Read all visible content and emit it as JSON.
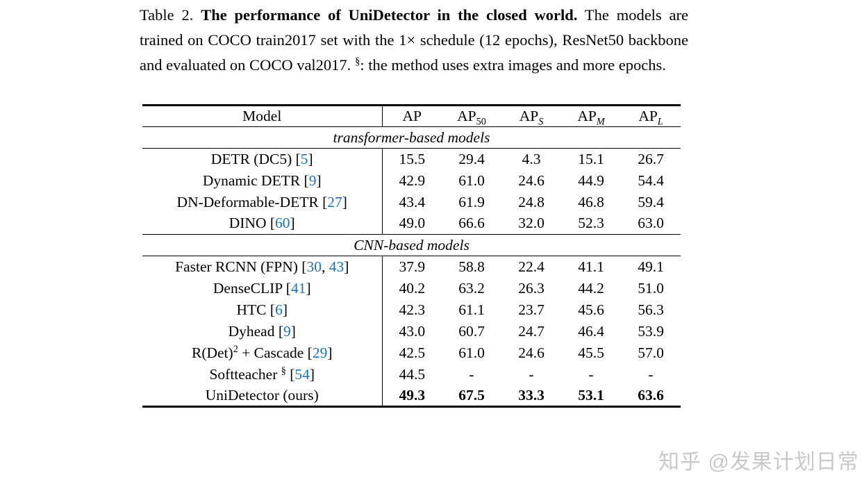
{
  "colors": {
    "citation": "#1673b9",
    "watermark": "#c8c8c8",
    "text": "#000000"
  },
  "caption": {
    "segments": [
      {
        "t": "Table 2. "
      },
      {
        "t": "The performance of UniDetector in the closed world.",
        "s": "bold"
      },
      {
        "t": " The models are trained on COCO train2017 set with the 1× schedule (12 epochs), ResNet50 backbone and evaluated on COCO val2017. "
      },
      {
        "t": "§",
        "s": "sup"
      },
      {
        "t": ": the method uses extra images and more epochs."
      }
    ]
  },
  "table": {
    "columns": [
      {
        "segments": [
          {
            "t": "Model"
          }
        ]
      },
      {
        "segments": [
          {
            "t": "AP"
          }
        ]
      },
      {
        "segments": [
          {
            "t": "AP"
          },
          {
            "t": "50",
            "s": "sub"
          }
        ]
      },
      {
        "segments": [
          {
            "t": "AP"
          },
          {
            "t": "S",
            "s": "subi"
          }
        ]
      },
      {
        "segments": [
          {
            "t": "AP"
          },
          {
            "t": "M",
            "s": "subi"
          }
        ]
      },
      {
        "segments": [
          {
            "t": "AP"
          },
          {
            "t": "L",
            "s": "subi"
          }
        ]
      }
    ],
    "sections": [
      {
        "title": "transformer-based models",
        "rows": [
          {
            "model": [
              {
                "t": "DETR (DC5) ["
              },
              {
                "t": "5",
                "s": "cite"
              },
              {
                "t": "]"
              }
            ],
            "values": [
              "15.5",
              "29.4",
              "4.3",
              "15.1",
              "26.7"
            ],
            "bold": false
          },
          {
            "model": [
              {
                "t": "Dynamic DETR ["
              },
              {
                "t": "9",
                "s": "cite"
              },
              {
                "t": "]"
              }
            ],
            "values": [
              "42.9",
              "61.0",
              "24.6",
              "44.9",
              "54.4"
            ],
            "bold": false
          },
          {
            "model": [
              {
                "t": "DN-Deformable-DETR ["
              },
              {
                "t": "27",
                "s": "cite"
              },
              {
                "t": "]"
              }
            ],
            "values": [
              "43.4",
              "61.9",
              "24.8",
              "46.8",
              "59.4"
            ],
            "bold": false
          },
          {
            "model": [
              {
                "t": "DINO ["
              },
              {
                "t": "60",
                "s": "cite"
              },
              {
                "t": "]"
              }
            ],
            "values": [
              "49.0",
              "66.6",
              "32.0",
              "52.3",
              "63.0"
            ],
            "bold": false
          }
        ]
      },
      {
        "title": "CNN-based models",
        "rows": [
          {
            "model": [
              {
                "t": "Faster RCNN (FPN) ["
              },
              {
                "t": "30",
                "s": "cite"
              },
              {
                "t": ", "
              },
              {
                "t": "43",
                "s": "cite"
              },
              {
                "t": "]"
              }
            ],
            "values": [
              "37.9",
              "58.8",
              "22.4",
              "41.1",
              "49.1"
            ],
            "bold": false
          },
          {
            "model": [
              {
                "t": "DenseCLIP ["
              },
              {
                "t": "41",
                "s": "cite"
              },
              {
                "t": "]"
              }
            ],
            "values": [
              "40.2",
              "63.2",
              "26.3",
              "44.2",
              "51.0"
            ],
            "bold": false
          },
          {
            "model": [
              {
                "t": "HTC ["
              },
              {
                "t": "6",
                "s": "cite"
              },
              {
                "t": "]"
              }
            ],
            "values": [
              "42.3",
              "61.1",
              "23.7",
              "45.6",
              "56.3"
            ],
            "bold": false
          },
          {
            "model": [
              {
                "t": "Dyhead ["
              },
              {
                "t": "9",
                "s": "cite"
              },
              {
                "t": "]"
              }
            ],
            "values": [
              "43.0",
              "60.7",
              "24.7",
              "46.4",
              "53.9"
            ],
            "bold": false
          },
          {
            "model": [
              {
                "t": "R(Det)"
              },
              {
                "t": "2",
                "s": "sup"
              },
              {
                "t": " + Cascade ["
              },
              {
                "t": "29",
                "s": "cite"
              },
              {
                "t": "]"
              }
            ],
            "values": [
              "42.5",
              "61.0",
              "24.6",
              "45.5",
              "57.0"
            ],
            "bold": false
          },
          {
            "model": [
              {
                "t": "Softteacher "
              },
              {
                "t": "§",
                "s": "sup"
              },
              {
                "t": " ["
              },
              {
                "t": "54",
                "s": "cite"
              },
              {
                "t": "]"
              }
            ],
            "values": [
              "44.5",
              "-",
              "-",
              "-",
              "-"
            ],
            "bold": false
          },
          {
            "model": [
              {
                "t": "UniDetector (ours)"
              }
            ],
            "values": [
              "49.3",
              "67.5",
              "33.3",
              "53.1",
              "63.6"
            ],
            "bold": true
          }
        ]
      }
    ]
  },
  "watermark": {
    "text": "知乎 @发果计划日常"
  }
}
